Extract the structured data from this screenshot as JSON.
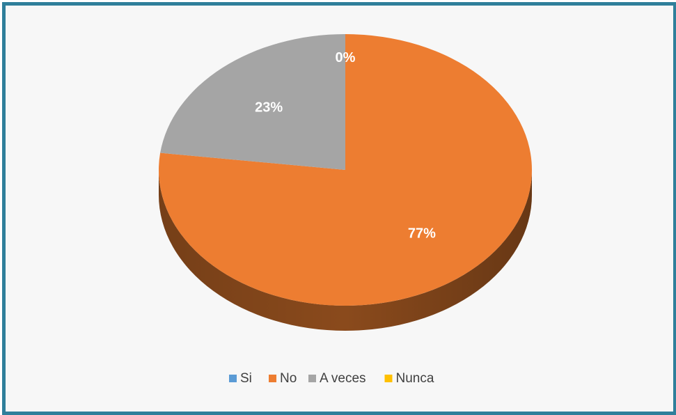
{
  "chart_data": {
    "type": "pie",
    "title": "",
    "categories": [
      "Si",
      "No",
      "A veces",
      "Nunca"
    ],
    "values": [
      0,
      77,
      23,
      0
    ],
    "labels": [
      "0%",
      "77%",
      "23%",
      "0%"
    ],
    "colors": [
      "#5b9bd5",
      "#ed7d31",
      "#a5a5a5",
      "#ffc000"
    ],
    "side_colors": [
      "#2e5f8a",
      "#8a4a1c",
      "#6e6e6e",
      "#a07a00"
    ],
    "legend_position": "bottom",
    "style": "3d"
  }
}
